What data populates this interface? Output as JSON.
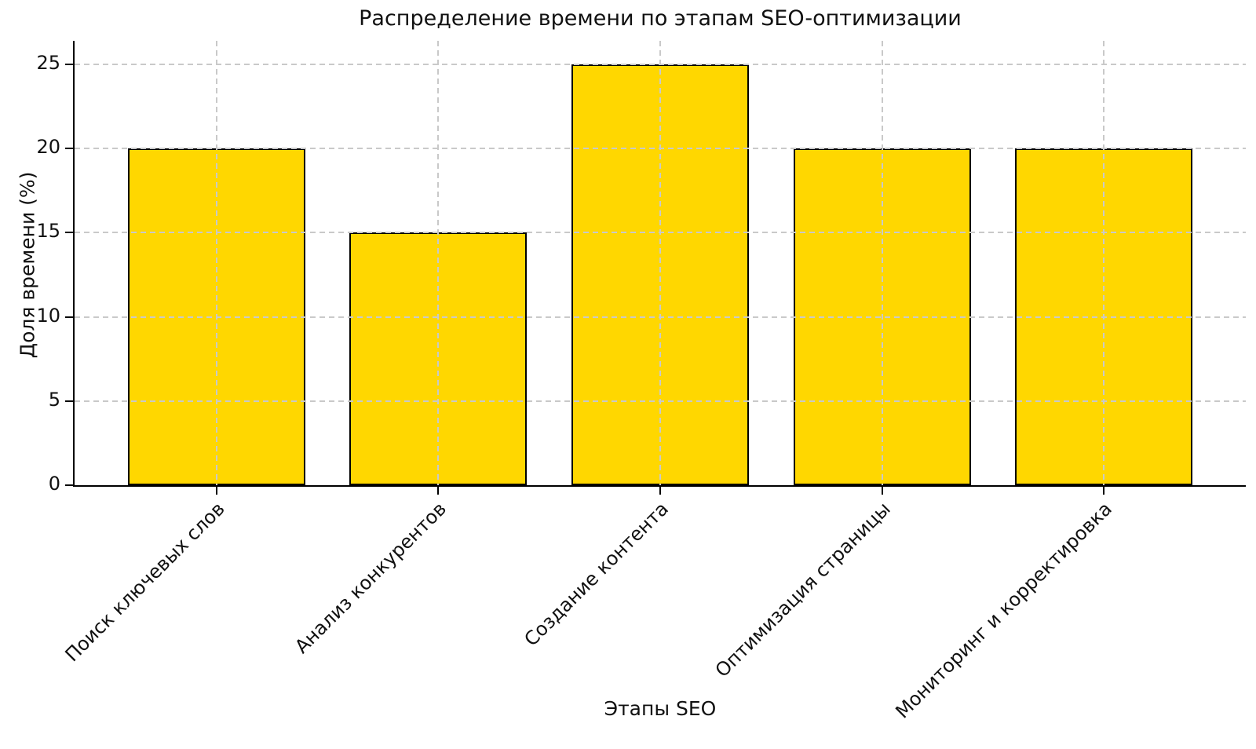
{
  "chart_data": {
    "type": "bar",
    "title": "Распределение времени по этапам SEO-оптимизации",
    "xlabel": "Этапы SEO",
    "ylabel": "Доля времени (%)",
    "categories": [
      "Поиск ключевых слов",
      "Анализ конкурентов",
      "Создание контента",
      "Оптимизация страницы",
      "Мониторинг и корректировка"
    ],
    "values": [
      20,
      15,
      25,
      20,
      20
    ],
    "yticks": [
      0,
      5,
      10,
      15,
      20,
      25
    ],
    "ylim": [
      0,
      26.4
    ],
    "xlim_units": 5.28,
    "x_offset_units": 0.64,
    "bar_width_units": 0.8,
    "bar_color": "#FFD700",
    "bar_edge_color": "#000000",
    "grid": true,
    "grid_color": "#c9c9c9",
    "grid_style": "dashed",
    "legend": "none",
    "background_color": "#ffffff"
  }
}
